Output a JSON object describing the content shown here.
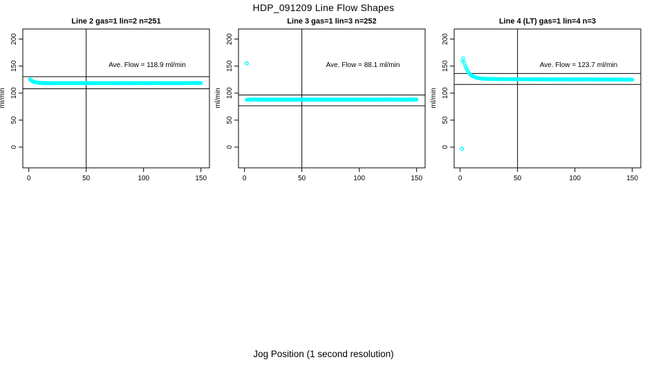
{
  "title": "HDP_091209  Line Flow Shapes",
  "xlabel": "Jog Position (1 second resolution)",
  "colors": {
    "points": "#00ffff",
    "axis_lines": "#000000",
    "text": "#000000",
    "background": "#ffffff"
  },
  "chart_data": [
    {
      "type": "scatter",
      "title": "Line 2 gas=1 lin=2 n=251",
      "annotation": "Ave. Flow =  118.9  ml/min",
      "ave_flow": 118.9,
      "ylabel": "ml/min",
      "xticks": [
        0,
        50,
        100,
        150
      ],
      "yticks": [
        0,
        50,
        100,
        150,
        200
      ],
      "xlim": [
        -5,
        157
      ],
      "ylim": [
        -38,
        218
      ],
      "vline_x": 50,
      "ref_lines": [
        130.5,
        108.0
      ],
      "x": [
        1,
        1.5,
        2,
        2.5,
        3,
        4,
        5,
        6,
        7,
        8,
        10,
        12,
        15,
        20,
        25,
        30,
        40,
        50,
        60,
        70,
        80,
        90,
        100,
        110,
        120,
        130,
        140,
        150
      ],
      "y": [
        125.5,
        124.5,
        123.7,
        122.9,
        122.3,
        121.3,
        120.6,
        120.0,
        119.6,
        119.3,
        118.9,
        118.7,
        118.6,
        118.5,
        118.5,
        118.5,
        118.5,
        118.6,
        118.5,
        118.5,
        118.6,
        118.5,
        118.5,
        118.6,
        118.5,
        118.5,
        118.6,
        118.7
      ],
      "outliers": [],
      "render_n": 251
    },
    {
      "type": "scatter",
      "title": "Line 3 gas=1 lin=3 n=252",
      "annotation": "Ave. Flow =  88.1  ml/min",
      "ave_flow": 88.1,
      "ylabel": "ml/min",
      "xticks": [
        0,
        50,
        100,
        150
      ],
      "yticks": [
        0,
        50,
        100,
        150,
        200
      ],
      "xlim": [
        -5,
        157
      ],
      "ylim": [
        -38,
        218
      ],
      "vline_x": 50,
      "ref_lines": [
        96.5,
        76.5
      ],
      "x": [
        2,
        4,
        6,
        10,
        20,
        30,
        40,
        50,
        60,
        70,
        80,
        90,
        100,
        110,
        120,
        130,
        140,
        150
      ],
      "y": [
        87.6,
        88.0,
        88.1,
        88.1,
        88.0,
        88.1,
        88.0,
        88.1,
        88.1,
        88.0,
        88.1,
        88.0,
        88.1,
        88.0,
        88.1,
        88.1,
        88.0,
        88.2
      ],
      "outliers": [
        [
          2,
          155
        ]
      ],
      "render_n": 251
    },
    {
      "type": "scatter",
      "title": "Line 4 (LT) gas=1 lin=4 n=3",
      "annotation": "Ave. Flow =  123.7  ml/min",
      "ave_flow": 123.7,
      "ylabel": "ml/min",
      "xticks": [
        0,
        50,
        100,
        150
      ],
      "yticks": [
        0,
        50,
        100,
        150,
        200
      ],
      "xlim": [
        -5,
        157
      ],
      "ylim": [
        -38,
        218
      ],
      "vline_x": 50,
      "ref_lines": [
        136.4,
        116.0
      ],
      "x": [
        2,
        2.5,
        3,
        3.5,
        4,
        5,
        6,
        7,
        8,
        9,
        10,
        12,
        14,
        16,
        18,
        20,
        25,
        30,
        35,
        40,
        50,
        60,
        70,
        80,
        90,
        100,
        110,
        120,
        130,
        140,
        150
      ],
      "y": [
        160,
        166,
        161,
        157,
        153,
        147.5,
        143,
        139.5,
        136.5,
        134,
        132.5,
        130.3,
        128.8,
        127.8,
        127.2,
        126.8,
        126.3,
        126.1,
        126.0,
        125.9,
        125.8,
        125.7,
        125.6,
        125.5,
        125.5,
        125.4,
        125.5,
        125.3,
        125.2,
        125.1,
        125.0
      ],
      "outliers": [
        [
          1.5,
          -3
        ]
      ],
      "render_n": 230
    }
  ]
}
